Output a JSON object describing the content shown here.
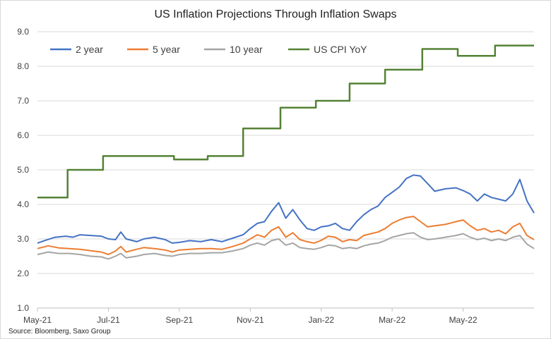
{
  "chart_data": {
    "type": "line",
    "title": "US Inflation Projections Through Inflation Swaps",
    "source": "Source: Bloomberg, Saxo Group",
    "xlabel": "",
    "ylabel": "",
    "ylim": [
      1.0,
      9.0
    ],
    "yticks": [
      "1.0",
      "2.0",
      "3.0",
      "4.0",
      "5.0",
      "6.0",
      "7.0",
      "8.0",
      "9.0"
    ],
    "xlim": [
      0,
      14
    ],
    "xticks": [
      {
        "x": 0,
        "label": "May-21"
      },
      {
        "x": 2,
        "label": "Jul-21"
      },
      {
        "x": 4,
        "label": "Sep-21"
      },
      {
        "x": 6,
        "label": "Nov-21"
      },
      {
        "x": 8,
        "label": "Jan-22"
      },
      {
        "x": 10,
        "label": "Mar-22"
      },
      {
        "x": 12,
        "label": "May-22"
      }
    ],
    "x_unit": "months since May-21",
    "grid": "horizontal",
    "legend_position": "top-left",
    "series": [
      {
        "name": "2 year",
        "color": "#4472c4",
        "points": [
          [
            0,
            2.88
          ],
          [
            0.2,
            2.95
          ],
          [
            0.5,
            3.05
          ],
          [
            0.8,
            3.08
          ],
          [
            1.0,
            3.05
          ],
          [
            1.2,
            3.12
          ],
          [
            1.5,
            3.1
          ],
          [
            1.8,
            3.08
          ],
          [
            2.0,
            3.0
          ],
          [
            2.2,
            2.98
          ],
          [
            2.35,
            3.2
          ],
          [
            2.5,
            3.0
          ],
          [
            2.8,
            2.92
          ],
          [
            3.0,
            3.0
          ],
          [
            3.3,
            3.05
          ],
          [
            3.6,
            2.98
          ],
          [
            3.8,
            2.88
          ],
          [
            4.0,
            2.9
          ],
          [
            4.3,
            2.95
          ],
          [
            4.6,
            2.92
          ],
          [
            4.9,
            2.98
          ],
          [
            5.2,
            2.92
          ],
          [
            5.5,
            3.02
          ],
          [
            5.8,
            3.12
          ],
          [
            6.0,
            3.3
          ],
          [
            6.2,
            3.45
          ],
          [
            6.4,
            3.5
          ],
          [
            6.6,
            3.8
          ],
          [
            6.8,
            4.05
          ],
          [
            7.0,
            3.6
          ],
          [
            7.2,
            3.85
          ],
          [
            7.4,
            3.55
          ],
          [
            7.6,
            3.3
          ],
          [
            7.8,
            3.25
          ],
          [
            8.0,
            3.35
          ],
          [
            8.2,
            3.38
          ],
          [
            8.4,
            3.45
          ],
          [
            8.6,
            3.3
          ],
          [
            8.8,
            3.25
          ],
          [
            9.0,
            3.5
          ],
          [
            9.2,
            3.7
          ],
          [
            9.4,
            3.85
          ],
          [
            9.6,
            3.95
          ],
          [
            9.8,
            4.2
          ],
          [
            10.0,
            4.35
          ],
          [
            10.2,
            4.5
          ],
          [
            10.4,
            4.75
          ],
          [
            10.6,
            4.85
          ],
          [
            10.8,
            4.82
          ],
          [
            11.0,
            4.6
          ],
          [
            11.2,
            4.38
          ],
          [
            11.5,
            4.45
          ],
          [
            11.8,
            4.48
          ],
          [
            12.0,
            4.4
          ],
          [
            12.2,
            4.3
          ],
          [
            12.4,
            4.1
          ],
          [
            12.6,
            4.3
          ],
          [
            12.8,
            4.2
          ],
          [
            13.0,
            4.15
          ],
          [
            13.2,
            4.1
          ],
          [
            13.4,
            4.3
          ],
          [
            13.6,
            4.72
          ],
          [
            13.8,
            4.1
          ],
          [
            14.0,
            3.75
          ]
        ]
      },
      {
        "name": "5 year",
        "color": "#ed7d31",
        "points": [
          [
            0,
            2.72
          ],
          [
            0.3,
            2.8
          ],
          [
            0.6,
            2.74
          ],
          [
            0.9,
            2.72
          ],
          [
            1.2,
            2.7
          ],
          [
            1.5,
            2.66
          ],
          [
            1.8,
            2.62
          ],
          [
            2.0,
            2.55
          ],
          [
            2.2,
            2.65
          ],
          [
            2.35,
            2.78
          ],
          [
            2.5,
            2.62
          ],
          [
            2.8,
            2.7
          ],
          [
            3.0,
            2.75
          ],
          [
            3.3,
            2.72
          ],
          [
            3.6,
            2.68
          ],
          [
            3.8,
            2.62
          ],
          [
            4.0,
            2.68
          ],
          [
            4.3,
            2.7
          ],
          [
            4.6,
            2.72
          ],
          [
            4.9,
            2.72
          ],
          [
            5.2,
            2.7
          ],
          [
            5.5,
            2.78
          ],
          [
            5.8,
            2.88
          ],
          [
            6.0,
            3.0
          ],
          [
            6.2,
            3.12
          ],
          [
            6.4,
            3.05
          ],
          [
            6.6,
            3.25
          ],
          [
            6.8,
            3.35
          ],
          [
            7.0,
            3.05
          ],
          [
            7.2,
            3.18
          ],
          [
            7.4,
            2.98
          ],
          [
            7.6,
            2.92
          ],
          [
            7.8,
            2.88
          ],
          [
            8.0,
            2.96
          ],
          [
            8.2,
            3.08
          ],
          [
            8.4,
            3.05
          ],
          [
            8.6,
            2.92
          ],
          [
            8.8,
            2.98
          ],
          [
            9.0,
            2.95
          ],
          [
            9.2,
            3.1
          ],
          [
            9.4,
            3.15
          ],
          [
            9.6,
            3.2
          ],
          [
            9.8,
            3.3
          ],
          [
            10.0,
            3.45
          ],
          [
            10.2,
            3.55
          ],
          [
            10.4,
            3.62
          ],
          [
            10.6,
            3.65
          ],
          [
            10.8,
            3.5
          ],
          [
            11.0,
            3.35
          ],
          [
            11.2,
            3.38
          ],
          [
            11.5,
            3.42
          ],
          [
            11.8,
            3.5
          ],
          [
            12.0,
            3.55
          ],
          [
            12.2,
            3.38
          ],
          [
            12.4,
            3.25
          ],
          [
            12.6,
            3.3
          ],
          [
            12.8,
            3.2
          ],
          [
            13.0,
            3.25
          ],
          [
            13.2,
            3.15
          ],
          [
            13.4,
            3.35
          ],
          [
            13.6,
            3.45
          ],
          [
            13.8,
            3.1
          ],
          [
            14.0,
            2.98
          ]
        ]
      },
      {
        "name": "10 year",
        "color": "#a5a5a5",
        "points": [
          [
            0,
            2.55
          ],
          [
            0.3,
            2.62
          ],
          [
            0.6,
            2.58
          ],
          [
            0.9,
            2.58
          ],
          [
            1.2,
            2.55
          ],
          [
            1.5,
            2.5
          ],
          [
            1.8,
            2.48
          ],
          [
            2.0,
            2.42
          ],
          [
            2.2,
            2.5
          ],
          [
            2.35,
            2.58
          ],
          [
            2.5,
            2.45
          ],
          [
            2.8,
            2.5
          ],
          [
            3.0,
            2.55
          ],
          [
            3.3,
            2.58
          ],
          [
            3.6,
            2.52
          ],
          [
            3.8,
            2.5
          ],
          [
            4.0,
            2.55
          ],
          [
            4.3,
            2.58
          ],
          [
            4.6,
            2.58
          ],
          [
            4.9,
            2.6
          ],
          [
            5.2,
            2.6
          ],
          [
            5.5,
            2.65
          ],
          [
            5.8,
            2.72
          ],
          [
            6.0,
            2.82
          ],
          [
            6.2,
            2.88
          ],
          [
            6.4,
            2.82
          ],
          [
            6.6,
            2.95
          ],
          [
            6.8,
            3.0
          ],
          [
            7.0,
            2.82
          ],
          [
            7.2,
            2.88
          ],
          [
            7.4,
            2.75
          ],
          [
            7.6,
            2.72
          ],
          [
            7.8,
            2.7
          ],
          [
            8.0,
            2.75
          ],
          [
            8.2,
            2.82
          ],
          [
            8.4,
            2.8
          ],
          [
            8.6,
            2.72
          ],
          [
            8.8,
            2.75
          ],
          [
            9.0,
            2.72
          ],
          [
            9.2,
            2.8
          ],
          [
            9.4,
            2.85
          ],
          [
            9.6,
            2.88
          ],
          [
            9.8,
            2.95
          ],
          [
            10.0,
            3.05
          ],
          [
            10.2,
            3.1
          ],
          [
            10.4,
            3.15
          ],
          [
            10.6,
            3.18
          ],
          [
            10.8,
            3.05
          ],
          [
            11.0,
            2.98
          ],
          [
            11.2,
            3.0
          ],
          [
            11.5,
            3.05
          ],
          [
            11.8,
            3.1
          ],
          [
            12.0,
            3.15
          ],
          [
            12.2,
            3.05
          ],
          [
            12.4,
            2.98
          ],
          [
            12.6,
            3.02
          ],
          [
            12.8,
            2.95
          ],
          [
            13.0,
            3.0
          ],
          [
            13.2,
            2.95
          ],
          [
            13.4,
            3.05
          ],
          [
            13.6,
            3.1
          ],
          [
            13.8,
            2.85
          ],
          [
            14.0,
            2.72
          ]
        ]
      },
      {
        "name": "US CPI YoY",
        "color": "#548235",
        "step": true,
        "points": [
          [
            0,
            4.2
          ],
          [
            0.85,
            4.2
          ],
          [
            0.85,
            5.0
          ],
          [
            1.85,
            5.0
          ],
          [
            1.85,
            5.4
          ],
          [
            3.85,
            5.4
          ],
          [
            3.85,
            5.3
          ],
          [
            4.8,
            5.3
          ],
          [
            4.8,
            5.4
          ],
          [
            5.8,
            5.4
          ],
          [
            5.8,
            6.2
          ],
          [
            6.85,
            6.2
          ],
          [
            6.85,
            6.8
          ],
          [
            7.85,
            6.8
          ],
          [
            7.85,
            7.0
          ],
          [
            8.8,
            7.0
          ],
          [
            8.8,
            7.5
          ],
          [
            9.8,
            7.5
          ],
          [
            9.8,
            7.9
          ],
          [
            10.85,
            7.9
          ],
          [
            10.85,
            8.5
          ],
          [
            11.85,
            8.5
          ],
          [
            11.85,
            8.3
          ],
          [
            12.9,
            8.3
          ],
          [
            12.9,
            8.6
          ],
          [
            14.0,
            8.6
          ]
        ]
      }
    ]
  }
}
